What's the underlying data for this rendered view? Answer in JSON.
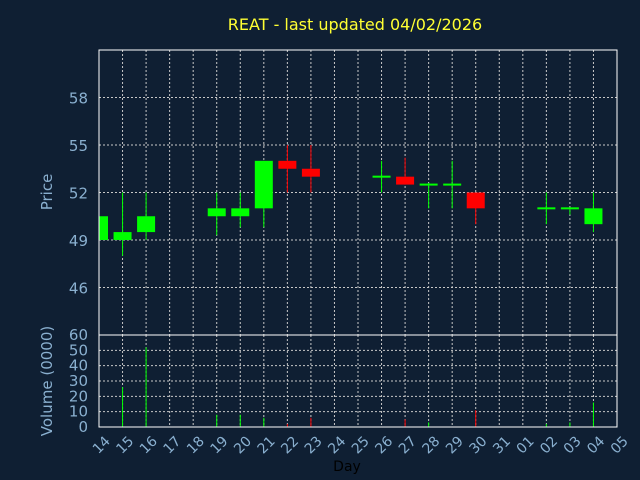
{
  "title": "REAT - last updated 04/02/2026",
  "colors": {
    "background": "#0f1f33",
    "frame": "#ffffff",
    "grid": "#c8c8c8",
    "up": "#00ff00",
    "down": "#ff0000",
    "title": "#ffff33",
    "labels": "#8ab0d0"
  },
  "chart_data": [
    {
      "type": "candlestick",
      "ylabel": "Price",
      "ylim": [
        43,
        61
      ],
      "yticks": [
        46,
        49,
        52,
        55,
        58
      ],
      "grid": true,
      "x": [
        "14",
        "15",
        "16",
        "17",
        "18",
        "19",
        "20",
        "21",
        "22",
        "23",
        "24",
        "25",
        "26",
        "27",
        "28",
        "29",
        "30",
        "31",
        "01",
        "02",
        "03",
        "04",
        "05"
      ],
      "candles": [
        {
          "day": "14",
          "open": 49,
          "close": 50.5,
          "high": 50.5,
          "low": 49
        },
        {
          "day": "15",
          "open": 49,
          "close": 49.5,
          "high": 52,
          "low": 48
        },
        {
          "day": "16",
          "open": 49.5,
          "close": 50.5,
          "high": 52,
          "low": 49
        },
        {
          "day": "19",
          "open": 50.5,
          "close": 51,
          "high": 52,
          "low": 49.3
        },
        {
          "day": "20",
          "open": 50.5,
          "close": 51,
          "high": 52,
          "low": 49.8
        },
        {
          "day": "21",
          "open": 51,
          "close": 54,
          "high": 54,
          "low": 49.8
        },
        {
          "day": "22",
          "open": 54,
          "close": 53.5,
          "high": 55,
          "low": 52
        },
        {
          "day": "23",
          "open": 53.5,
          "close": 53,
          "high": 55,
          "low": 52
        },
        {
          "day": "26",
          "open": 53,
          "close": 53,
          "high": 54,
          "low": 52
        },
        {
          "day": "27",
          "open": 53,
          "close": 52.5,
          "high": 54.2,
          "low": 52.5
        },
        {
          "day": "28",
          "open": 52.5,
          "close": 52.5,
          "high": 52.6,
          "low": 51
        },
        {
          "day": "29",
          "open": 52.5,
          "close": 52.5,
          "high": 54,
          "low": 51
        },
        {
          "day": "30",
          "open": 52,
          "close": 51,
          "high": 52,
          "low": 50
        },
        {
          "day": "02",
          "open": 51,
          "close": 51,
          "high": 52,
          "low": 50
        },
        {
          "day": "03",
          "open": 51,
          "close": 51,
          "high": 51,
          "low": 50.6
        },
        {
          "day": "04",
          "open": 50,
          "close": 51,
          "high": 52,
          "low": 49.5
        }
      ]
    },
    {
      "type": "bar",
      "xlabel": "Day",
      "ylabel": "Volume (0000)",
      "ylim": [
        0,
        60
      ],
      "yticks": [
        0,
        10,
        20,
        30,
        40,
        50,
        60
      ],
      "grid": true,
      "x": [
        "14",
        "15",
        "16",
        "17",
        "18",
        "19",
        "20",
        "21",
        "22",
        "23",
        "24",
        "25",
        "26",
        "27",
        "28",
        "29",
        "30",
        "31",
        "01",
        "02",
        "03",
        "04",
        "05"
      ],
      "bars": [
        {
          "day": "15",
          "value": 26,
          "dir": "up"
        },
        {
          "day": "16",
          "value": 52,
          "dir": "up"
        },
        {
          "day": "19",
          "value": 8,
          "dir": "up"
        },
        {
          "day": "20",
          "value": 8,
          "dir": "up"
        },
        {
          "day": "21",
          "value": 6,
          "dir": "up"
        },
        {
          "day": "22",
          "value": 2,
          "dir": "down"
        },
        {
          "day": "23",
          "value": 6,
          "dir": "down"
        },
        {
          "day": "27",
          "value": 5,
          "dir": "down"
        },
        {
          "day": "28",
          "value": 3,
          "dir": "up"
        },
        {
          "day": "30",
          "value": 11,
          "dir": "down"
        },
        {
          "day": "02",
          "value": 2,
          "dir": "up"
        },
        {
          "day": "03",
          "value": 3,
          "dir": "up"
        },
        {
          "day": "04",
          "value": 16,
          "dir": "up"
        }
      ]
    }
  ]
}
